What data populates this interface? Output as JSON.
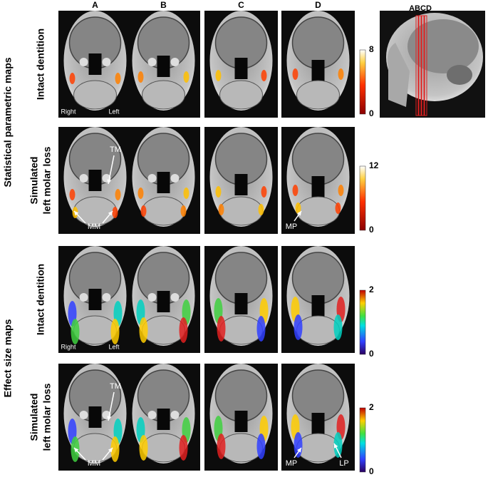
{
  "columns": [
    "A",
    "B",
    "C",
    "D"
  ],
  "sagittal_label": "ABCD",
  "groups": [
    {
      "title": "Statistical parametric maps",
      "rows": [
        {
          "label": [
            "Intact dentition"
          ],
          "colorbar": {
            "max": 8,
            "min": 0
          },
          "annotations": [
            {
              "panel": 0,
              "text": "Right"
            },
            {
              "panel": 0,
              "text": "Left"
            }
          ]
        },
        {
          "label": [
            "Simulated",
            "left molar loss"
          ],
          "colorbar": {
            "max": 12,
            "min": 0
          },
          "annotations": [
            {
              "panel": 0,
              "text": "TM"
            },
            {
              "panel": 0,
              "text": "MM"
            },
            {
              "panel": 3,
              "text": "MP"
            }
          ]
        }
      ]
    },
    {
      "title": "Effect size maps",
      "rows": [
        {
          "label": [
            "Intact dentition"
          ],
          "colorbar": {
            "max": 2,
            "min": 0
          },
          "annotations": [
            {
              "panel": 0,
              "text": "Right"
            },
            {
              "panel": 0,
              "text": "Left"
            }
          ]
        },
        {
          "label": [
            "Simulated",
            "left molar loss"
          ],
          "colorbar": {
            "max": 2,
            "min": 0
          },
          "annotations": [
            {
              "panel": 0,
              "text": "TM"
            },
            {
              "panel": 0,
              "text": "MM"
            },
            {
              "panel": 3,
              "text": "MP"
            },
            {
              "panel": 3,
              "text": "LP"
            }
          ]
        }
      ]
    }
  ]
}
